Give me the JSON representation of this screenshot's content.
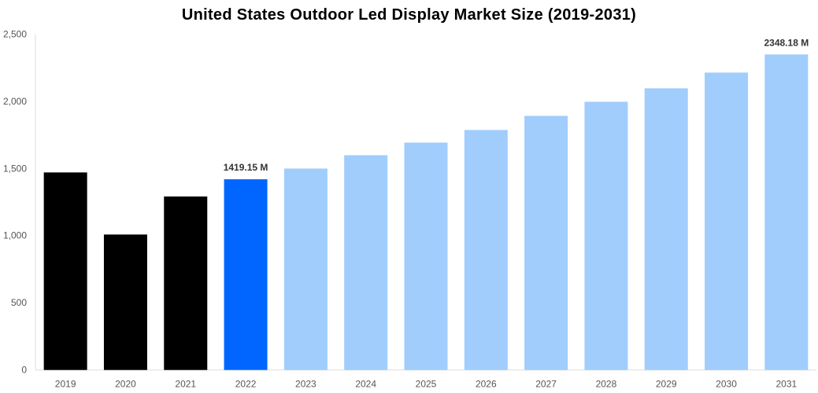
{
  "chart_data": {
    "type": "bar",
    "title": "United States Outdoor Led Display Market Size (2019-2031)",
    "xlabel": "",
    "ylabel": "",
    "ylim": [
      0,
      2500
    ],
    "yticks": [
      0,
      500,
      1000,
      1500,
      2000,
      2500
    ],
    "ytick_labels": [
      "0",
      "500",
      "1,000",
      "1,500",
      "2,000",
      "2,500"
    ],
    "grid": false,
    "categories": [
      "2019",
      "2020",
      "2021",
      "2022",
      "2023",
      "2024",
      "2025",
      "2026",
      "2027",
      "2028",
      "2029",
      "2030",
      "2031"
    ],
    "values": [
      1470,
      1008,
      1291,
      1419.15,
      1499,
      1598,
      1692,
      1786,
      1891,
      1996,
      2096,
      2213,
      2348.18
    ],
    "bar_colors": [
      "#000000",
      "#000000",
      "#000000",
      "#0066ff",
      "#a0cdfc",
      "#a0cdfc",
      "#a0cdfc",
      "#a0cdfc",
      "#a0cdfc",
      "#a0cdfc",
      "#a0cdfc",
      "#a0cdfc",
      "#a0cdfc"
    ],
    "data_labels": [
      {
        "category": "2022",
        "text": "1419.15 M"
      },
      {
        "category": "2031",
        "text": "2348.18 M"
      }
    ]
  }
}
